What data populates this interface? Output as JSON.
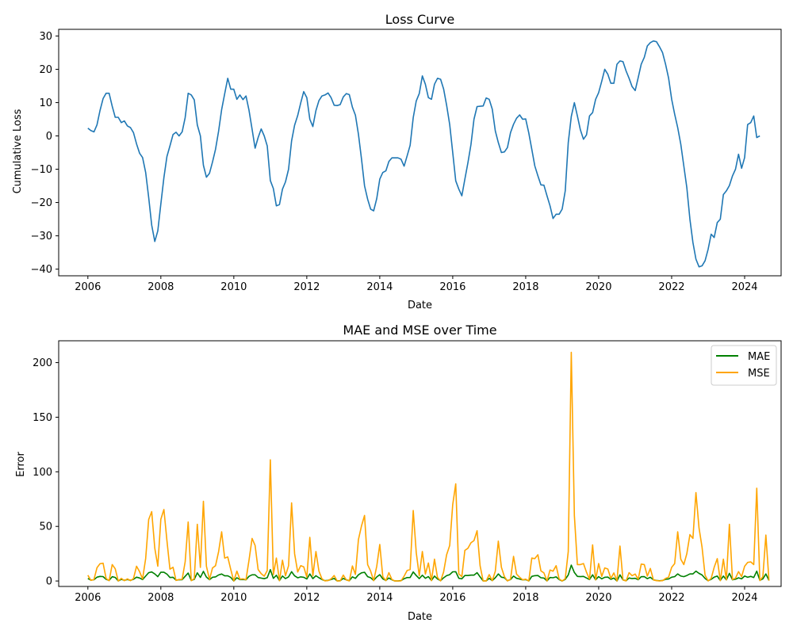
{
  "chart_data": [
    {
      "type": "line",
      "title": "Loss Curve",
      "xlabel": "Date",
      "ylabel": "Cumulative Loss",
      "xlim": [
        2005.2,
        2025.0
      ],
      "ylim": [
        -42,
        32
      ],
      "xticks": [
        2006,
        2008,
        2010,
        2012,
        2014,
        2016,
        2018,
        2020,
        2022,
        2024
      ],
      "yticks": [
        -40,
        -30,
        -20,
        -10,
        0,
        10,
        20,
        30
      ],
      "grid": false,
      "series": [
        {
          "color": "#1f77b4",
          "x_start": 2006.0,
          "x_step": 0.0833333,
          "values": [
            2.3,
            1.6,
            1.2,
            3.3,
            7.6,
            11.2,
            12.8,
            12.8,
            8.9,
            5.6,
            5.6,
            4.0,
            4.5,
            3.0,
            2.5,
            1.0,
            -2.4,
            -5.2,
            -6.5,
            -11.0,
            -18.5,
            -26.8,
            -31.7,
            -28.5,
            -20.5,
            -12.5,
            -6.2,
            -3.0,
            0.4,
            1.1,
            0.0,
            1.2,
            5.5,
            12.8,
            12.3,
            10.8,
            3.3,
            0.0,
            -8.8,
            -12.4,
            -11.2,
            -7.8,
            -4.0,
            1.5,
            7.9,
            12.6,
            17.3,
            14.0,
            14.0,
            11.0,
            12.3,
            10.9,
            12.0,
            7.7,
            2.0,
            -3.7,
            -0.5,
            2.1,
            0.0,
            -3.0,
            -13.4,
            -15.8,
            -21.0,
            -20.6,
            -16.0,
            -13.8,
            -10.0,
            -1.5,
            3.2,
            6.1,
            9.9,
            13.3,
            11.5,
            5.0,
            2.8,
            7.6,
            10.6,
            12.0,
            12.3,
            12.9,
            11.5,
            9.2,
            9.1,
            9.4,
            11.7,
            12.7,
            12.4,
            8.6,
            6.2,
            0.5,
            -7.0,
            -15.0,
            -19.0,
            -22.0,
            -22.5,
            -18.8,
            -13.0,
            -11.0,
            -10.5,
            -7.7,
            -6.6,
            -6.6,
            -6.6,
            -7.0,
            -9.1,
            -6.0,
            -2.8,
            5.5,
            10.5,
            12.7,
            18.0,
            15.5,
            11.5,
            11.0,
            15.5,
            17.3,
            17.0,
            14.1,
            9.2,
            3.4,
            -5.0,
            -13.5,
            -16.0,
            -18.0,
            -13.0,
            -8.0,
            -2.6,
            5.0,
            8.8,
            8.9,
            9.0,
            11.4,
            11.0,
            8.0,
            1.5,
            -2.0,
            -5.0,
            -4.8,
            -3.5,
            1.0,
            3.5,
            5.3,
            6.3,
            5.0,
            5.1,
            0.9,
            -4.0,
            -9.0,
            -12.0,
            -14.7,
            -14.8,
            -18.0,
            -21.0,
            -24.8,
            -23.5,
            -23.5,
            -22.0,
            -16.5,
            -2.0,
            5.8,
            10.0,
            6.0,
            1.8,
            -1.0,
            0.3,
            6.0,
            7.0,
            11.0,
            13.0,
            16.4,
            20.0,
            18.5,
            15.8,
            15.8,
            21.5,
            22.5,
            22.3,
            19.5,
            17.3,
            14.8,
            13.6,
            17.5,
            21.5,
            23.6,
            27.0,
            28.0,
            28.5,
            28.3,
            26.8,
            25.0,
            21.5,
            17.4,
            11.0,
            6.5,
            2.5,
            -2.5,
            -9.0,
            -15.5,
            -25.0,
            -32.0,
            -37.0,
            -39.3,
            -39.0,
            -37.5,
            -34.0,
            -29.5,
            -30.5,
            -26.0,
            -25.0,
            -17.6,
            -16.5,
            -14.9,
            -12.0,
            -10.0,
            -5.5,
            -9.7,
            -6.5,
            3.4,
            4.0,
            6.0,
            -0.5,
            0.0
          ]
        }
      ]
    },
    {
      "type": "line",
      "title": "MAE and MSE over Time",
      "xlabel": "Date",
      "ylabel": "Error",
      "xlim": [
        2005.2,
        2025.0
      ],
      "ylim": [
        -5,
        220
      ],
      "xticks": [
        2006,
        2008,
        2010,
        2012,
        2014,
        2016,
        2018,
        2020,
        2022,
        2024
      ],
      "yticks": [
        0,
        50,
        100,
        150,
        200
      ],
      "grid": false,
      "legend": "top-right",
      "series": [
        {
          "name": "MAE",
          "color": "#008000",
          "x_start": 2006.0,
          "x_step": 0.0833333,
          "values": [
            2.3,
            0.8,
            1.2,
            3.5,
            4.2,
            4.0,
            1.5,
            0.5,
            3.9,
            3.3,
            0.1,
            1.5,
            0.6,
            1.4,
            0.6,
            1.5,
            3.5,
            2.8,
            1.3,
            4.5,
            7.6,
            8.3,
            6.5,
            4.0,
            8.0,
            8.0,
            6.3,
            3.2,
            3.4,
            0.7,
            1.1,
            1.2,
            4.3,
            7.3,
            0.5,
            1.5,
            7.5,
            3.3,
            8.8,
            3.6,
            1.2,
            3.4,
            3.8,
            5.5,
            6.4,
            4.7,
            4.7,
            3.3,
            0.0,
            3.0,
            1.3,
            1.4,
            1.1,
            4.3,
            5.7,
            5.7,
            3.2,
            2.6,
            2.1,
            3.0,
            10.4,
            2.4,
            5.2,
            0.4,
            4.6,
            2.2,
            3.8,
            8.5,
            4.7,
            2.9,
            3.8,
            3.4,
            1.8,
            6.5,
            2.2,
            4.8,
            3.0,
            1.4,
            0.3,
            0.6,
            1.4,
            2.3,
            0.1,
            0.3,
            2.3,
            1.0,
            0.3,
            3.8,
            2.4,
            5.7,
            7.5,
            8.0,
            4.0,
            3.0,
            0.5,
            3.7,
            5.8,
            2.0,
            0.5,
            2.8,
            1.1,
            0.0,
            0.0,
            0.4,
            2.1,
            3.1,
            3.2,
            8.3,
            5.0,
            2.2,
            5.3,
            2.5,
            4.0,
            0.5,
            4.5,
            1.8,
            0.3,
            2.9,
            4.9,
            5.8,
            8.4,
            8.5,
            2.5,
            2.0,
            5.0,
            5.0,
            5.4,
            5.4,
            7.6,
            3.8,
            0.1,
            0.1,
            2.4,
            0.4,
            3.0,
            6.5,
            3.5,
            3.0,
            0.2,
            1.3,
            4.5,
            2.5,
            1.8,
            1.0,
            1.3,
            0.1,
            4.2,
            4.9,
            5.0,
            3.0,
            2.7,
            0.1,
            3.2,
            3.0,
            3.8,
            1.3,
            0.0,
            1.5,
            5.5,
            14.5,
            7.8,
            4.2,
            4.0,
            4.2,
            2.8,
            1.3,
            5.7,
            1.0,
            4.0,
            2.0,
            3.4,
            3.6,
            1.5,
            2.7,
            0.0,
            5.7,
            1.0,
            0.2,
            2.8,
            2.2,
            2.5,
            1.2,
            3.9,
            4.0,
            2.1,
            3.4,
            1.0,
            0.5,
            0.2,
            0.5,
            1.5,
            1.8,
            3.5,
            4.0,
            6.5,
            4.5,
            4.0,
            5.0,
            6.5,
            6.5,
            9.0,
            7.0,
            5.5,
            2.3,
            0.3,
            1.5,
            3.5,
            4.5,
            0.5,
            4.5,
            1.0,
            7.0,
            1.1,
            1.6,
            2.9,
            2.0,
            4.5,
            3.4,
            4.2,
            3.2,
            9.0,
            0.6,
            2.0,
            6.5,
            0.5
          ]
        },
        {
          "name": "MSE",
          "color": "#ffa500",
          "x_start": 2006.0,
          "x_step": 0.0833333,
          "values": [
            5.3,
            0.6,
            1.4,
            12.1,
            15.8,
            16.3,
            2.3,
            0.2,
            15.0,
            11.2,
            0.0,
            2.4,
            0.3,
            2.0,
            0.3,
            2.2,
            13.5,
            8.6,
            1.9,
            20.6,
            56.3,
            63.5,
            30.0,
            13.5,
            56.5,
            65.5,
            37.0,
            10.8,
            12.6,
            0.5,
            1.4,
            1.5,
            17.6,
            54.0,
            0.3,
            2.2,
            52.0,
            12.4,
            73.0,
            13.5,
            1.4,
            12.0,
            14.0,
            27.0,
            45.0,
            21.0,
            22.0,
            10.5,
            0.0,
            9.0,
            1.7,
            2.0,
            1.2,
            19.0,
            39.0,
            32.5,
            10.5,
            6.7,
            4.4,
            9.5,
            111.0,
            5.8,
            21.0,
            0.2,
            19.0,
            4.8,
            14.0,
            71.5,
            25.0,
            8.2,
            14.0,
            13.0,
            3.5,
            40.0,
            4.7,
            27.0,
            9.0,
            2.0,
            0.1,
            0.4,
            1.9,
            5.0,
            0.0,
            0.1,
            5.4,
            1.0,
            0.1,
            13.7,
            6.0,
            38.0,
            50.5,
            60.0,
            15.0,
            9.0,
            0.3,
            13.5,
            33.5,
            4.0,
            0.3,
            7.6,
            1.3,
            0.0,
            0.0,
            0.1,
            4.4,
            9.6,
            10.5,
            64.5,
            26.0,
            4.8,
            27.0,
            6.3,
            16.5,
            0.3,
            20.0,
            3.2,
            0.1,
            8.3,
            24.0,
            32.5,
            70.0,
            89.0,
            6.5,
            4.0,
            28.0,
            30.0,
            35.0,
            37.0,
            46.0,
            14.0,
            0.0,
            0.0,
            5.8,
            0.2,
            9.0,
            36.5,
            12.5,
            4.0,
            0.1,
            1.6,
            22.5,
            6.3,
            3.4,
            1.0,
            1.7,
            0.0,
            21.0,
            20.5,
            24.0,
            9.3,
            7.4,
            0.0,
            10.0,
            9.0,
            14.0,
            1.8,
            0.0,
            2.2,
            27.0,
            209.5,
            60.0,
            15.0,
            15.0,
            16.0,
            8.0,
            1.7,
            33.0,
            1.0,
            16.0,
            4.2,
            12.0,
            11.0,
            2.3,
            7.4,
            0.0,
            32.0,
            1.0,
            0.1,
            7.6,
            4.9,
            6.4,
            1.5,
            15.5,
            15.0,
            4.5,
            11.5,
            1.0,
            0.3,
            0.1,
            0.3,
            2.3,
            3.5,
            12.5,
            16.0,
            45.0,
            20.0,
            15.0,
            25.0,
            42.5,
            39.0,
            81.0,
            48.5,
            31.0,
            5.4,
            0.1,
            2.3,
            12.5,
            20.5,
            0.3,
            20.0,
            1.0,
            52.0,
            1.3,
            2.6,
            8.6,
            4.0,
            13.5,
            17.0,
            17.5,
            15.0,
            85.0,
            0.4,
            4.0,
            42.0,
            0.3
          ]
        }
      ]
    }
  ]
}
